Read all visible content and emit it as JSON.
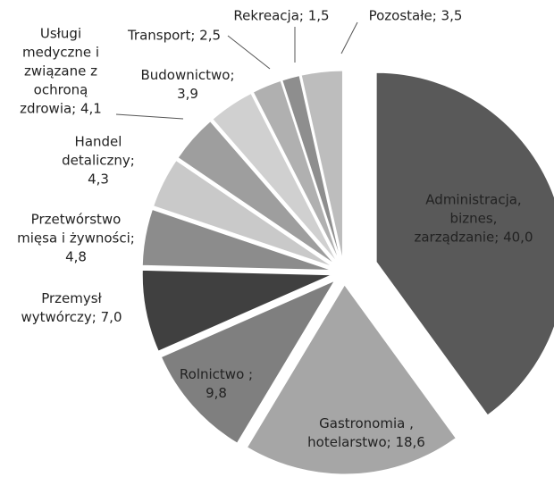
{
  "chart_data": {
    "type": "pie",
    "values": [
      40.0,
      18.6,
      9.8,
      7.0,
      4.8,
      4.3,
      4.1,
      3.9,
      2.5,
      1.5,
      3.5
    ],
    "value_labels": [
      "Administracja, biznes, zarządzanie; 40,0",
      "Gastronomia , hotelarstwo; 18,6",
      "Rolnictwo ; 9,8",
      "Przemysł wytwórczy; 7,0",
      "Przetwórstwo mięsa i żywności; 4,8",
      "Handel detaliczny; 4,3",
      "Usługi medyczne i związane z ochroną zdrowia; 4,1",
      "Budownictwo; 3,9",
      "Transport; 2,5",
      "Rekreacja; 1,5",
      "Pozostałe; 3,5"
    ],
    "colors": [
      "#595959",
      "#a6a6a6",
      "#7f7f7f",
      "#404040",
      "#8c8c8c",
      "#c9c9c9",
      "#9e9e9e",
      "#d0d0d0",
      "#b0b0b0",
      "#8e8e8e",
      "#bdbdbd"
    ]
  }
}
